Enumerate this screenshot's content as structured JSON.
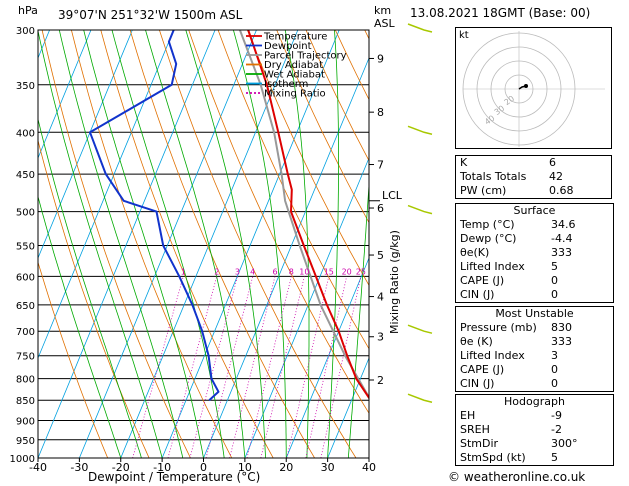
{
  "chart_data": {
    "type": "skew-t log-p sounding",
    "location": "39°07'N 251°32'W 1500m ASL",
    "datetime": "13.08.2021 18GMT (Base: 00)",
    "pressure_axis_label": "hPa",
    "altitude_axis_label": "km\nASL",
    "xlabel": "Dewpoint / Temperature (°C)",
    "mixing_ratio_label": "Mixing Ratio (g/kg)",
    "pressure_ticks": [
      300,
      350,
      400,
      450,
      500,
      550,
      600,
      650,
      700,
      750,
      800,
      850,
      900,
      950,
      1000
    ],
    "temperature_ticks": [
      -40,
      -30,
      -20,
      -10,
      0,
      10,
      20,
      30,
      40
    ],
    "altitude_ticks": [
      {
        "km": "9",
        "p": 325
      },
      {
        "km": "8",
        "p": 378
      },
      {
        "km": "7",
        "p": 438
      },
      {
        "km": "6",
        "p": 495
      },
      {
        "km": "5",
        "p": 565
      },
      {
        "km": "4",
        "p": 635
      },
      {
        "km": "3",
        "p": 711
      },
      {
        "km": "2",
        "p": 803
      }
    ],
    "lcl": {
      "label": "LCL",
      "p": 485
    },
    "mixing_ratio_values": [
      "1",
      "2",
      "3",
      "4",
      "6",
      "8",
      "10",
      "15",
      "20",
      "25"
    ],
    "legend": [
      {
        "name": "Temperature",
        "color": "#dd0000"
      },
      {
        "name": "Dewpoint",
        "color": "#1133cc"
      },
      {
        "name": "Parcel Trajectory",
        "color": "#999999"
      },
      {
        "name": "Dry Adiabat",
        "color": "#e07000"
      },
      {
        "name": "Wet Adiabat",
        "color": "#00aa00"
      },
      {
        "name": "Isotherm",
        "color": "#00a0e0"
      },
      {
        "name": "Mixing Ratio",
        "color": "#cc00aa"
      }
    ],
    "temperature_profile": [
      {
        "p": 850,
        "t": 34.6
      },
      {
        "p": 800,
        "t": 29.0
      },
      {
        "p": 750,
        "t": 24.5
      },
      {
        "p": 700,
        "t": 20.0
      },
      {
        "p": 650,
        "t": 14.5
      },
      {
        "p": 600,
        "t": 9.0
      },
      {
        "p": 550,
        "t": 3.0
      },
      {
        "p": 500,
        "t": -3.5
      },
      {
        "p": 470,
        "t": -5.5
      },
      {
        "p": 450,
        "t": -8.0
      },
      {
        "p": 400,
        "t": -14.5
      },
      {
        "p": 350,
        "t": -22.0
      },
      {
        "p": 300,
        "t": -32.0
      }
    ],
    "dewpoint_profile": [
      {
        "p": 850,
        "t": -4.4
      },
      {
        "p": 830,
        "t": -3.0
      },
      {
        "p": 800,
        "t": -6.0
      },
      {
        "p": 750,
        "t": -9.0
      },
      {
        "p": 700,
        "t": -13.0
      },
      {
        "p": 650,
        "t": -18.0
      },
      {
        "p": 600,
        "t": -24.0
      },
      {
        "p": 550,
        "t": -31.0
      },
      {
        "p": 500,
        "t": -36.0
      },
      {
        "p": 485,
        "t": -45.0
      },
      {
        "p": 450,
        "t": -52.0
      },
      {
        "p": 400,
        "t": -60.0
      },
      {
        "p": 350,
        "t": -45.0
      },
      {
        "p": 330,
        "t": -46.0
      },
      {
        "p": 310,
        "t": -50.0
      },
      {
        "p": 300,
        "t": -50.0
      }
    ],
    "parcel_profile": [
      {
        "p": 850,
        "t": 34.6
      },
      {
        "p": 750,
        "t": 24.0
      },
      {
        "p": 650,
        "t": 13.0
      },
      {
        "p": 550,
        "t": 2.0
      },
      {
        "p": 485,
        "t": -6.0
      },
      {
        "p": 450,
        "t": -9.5
      },
      {
        "p": 400,
        "t": -15.5
      },
      {
        "p": 350,
        "t": -23.5
      },
      {
        "p": 300,
        "t": -34.0
      }
    ],
    "wind_barb_pressures": [
      300,
      400,
      500,
      700,
      850
    ]
  },
  "hodograph": {
    "label": "kt",
    "ring_labels": [
      "40",
      "30",
      "20"
    ]
  },
  "indices": [
    {
      "label": "K",
      "value": "6"
    },
    {
      "label": "Totals Totals",
      "value": "42"
    },
    {
      "label": "PW (cm)",
      "value": "0.68"
    }
  ],
  "surface": {
    "title": "Surface",
    "rows": [
      {
        "label": "Temp (°C)",
        "value": "34.6"
      },
      {
        "label": "Dewp (°C)",
        "value": "-4.4"
      },
      {
        "label": "θe(K)",
        "value": "333"
      },
      {
        "label": "Lifted Index",
        "value": "5"
      },
      {
        "label": "CAPE (J)",
        "value": "0"
      },
      {
        "label": "CIN (J)",
        "value": "0"
      }
    ]
  },
  "most_unstable": {
    "title": "Most Unstable",
    "rows": [
      {
        "label": "Pressure (mb)",
        "value": "830"
      },
      {
        "label": "θe (K)",
        "value": "333"
      },
      {
        "label": "Lifted Index",
        "value": "3"
      },
      {
        "label": "CAPE (J)",
        "value": "0"
      },
      {
        "label": "CIN (J)",
        "value": "0"
      }
    ]
  },
  "hodograph_table": {
    "title": "Hodograph",
    "rows": [
      {
        "label": "EH",
        "value": "-9"
      },
      {
        "label": "SREH",
        "value": "-2"
      },
      {
        "label": "StmDir",
        "value": "300°"
      },
      {
        "label": "StmSpd (kt)",
        "value": "5"
      }
    ]
  },
  "copyright": "© weatheronline.co.uk"
}
